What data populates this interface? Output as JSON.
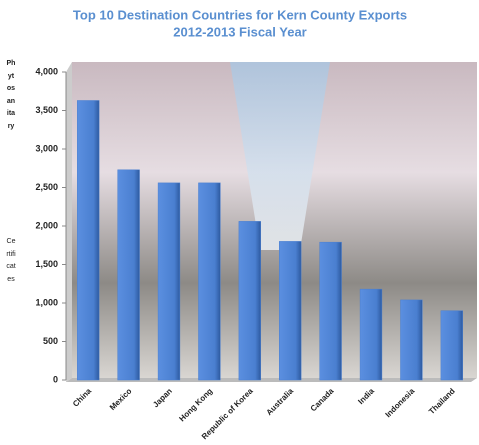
{
  "chart_data": {
    "type": "bar",
    "title": "Top 10 Destination  Countries for Kern County Exports",
    "subtitle": "2012-2013 Fiscal Year",
    "ylabel": [
      "Phytosanitary",
      "Certificates"
    ],
    "categories": [
      "China",
      "Mexico",
      "Japan",
      "Hong Kong",
      "Republic of Korea",
      "Australia",
      "Canada",
      "India",
      "Indonesia",
      "Thailand"
    ],
    "values": [
      3630,
      2730,
      2560,
      2560,
      2060,
      1800,
      1790,
      1180,
      1040,
      900
    ],
    "color": "#4a7fd0",
    "ylim": [
      0,
      4000
    ],
    "yticks": [
      0,
      500,
      {
        "value": 1000,
        "label": "1,000"
      },
      {
        "value": 1500,
        "label": "1,500"
      },
      {
        "value": 2000,
        "label": "2,000"
      },
      {
        "value": 2500,
        "label": "2,500"
      },
      {
        "value": 3000,
        "label": "3,000"
      },
      {
        "value": 3500,
        "label": "3,500"
      },
      {
        "value": 4000,
        "label": "4,000"
      }
    ],
    "grid": false
  }
}
